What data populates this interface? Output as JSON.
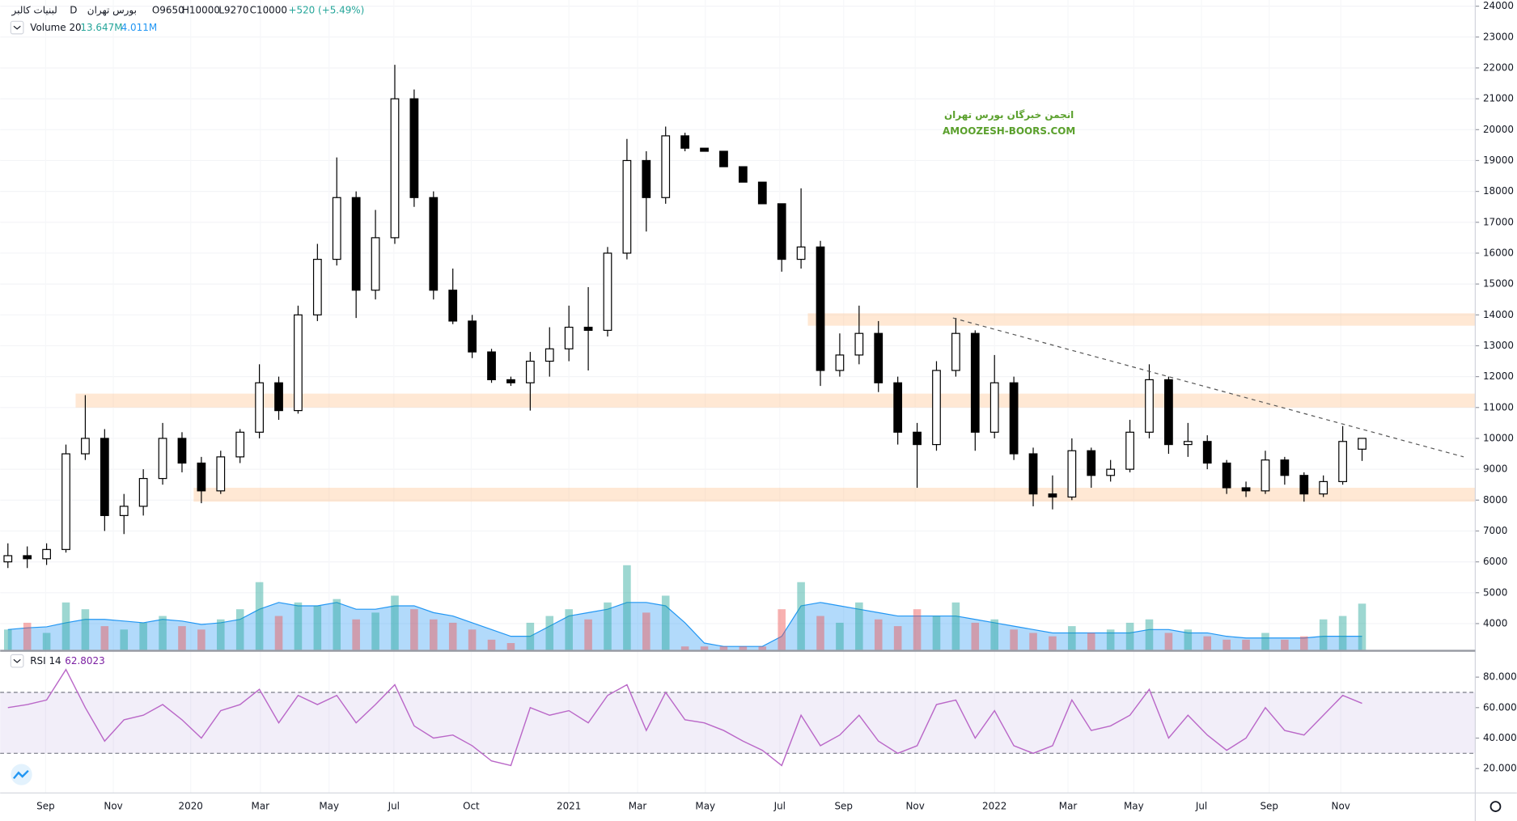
{
  "chart_data": {
    "type": "candlestick",
    "header": {
      "symbol": "لبنیات کالبر",
      "interval": "D",
      "exchange": "بورس تهران",
      "ohlc": [
        "O9650",
        "H10000",
        "L9270",
        "C10000"
      ],
      "change": "+520 (+5.49%)"
    },
    "volume_legend": {
      "name": "Volume 20",
      "value_label": "13.647M",
      "ma_label": "4.011M"
    },
    "rsi_legend": {
      "name": "RSI 14",
      "value_label": "62.8023"
    },
    "watermark": [
      "انجمن خبرگان بورس تهران",
      "AMOOZESH-BOORS.COM"
    ],
    "up_color": "#ffffff",
    "down_color": "#000000",
    "wick_color": "#000000",
    "xlim": [
      -0.4,
      75.85
    ],
    "xticks": [
      {
        "value": 1.95,
        "label": "Sep"
      },
      {
        "value": 5.45,
        "label": "Nov"
      },
      {
        "value": 9.45,
        "label": "2020"
      },
      {
        "value": 13.05,
        "label": "Mar"
      },
      {
        "value": 16.6,
        "label": "May"
      },
      {
        "value": 19.95,
        "label": "Jul"
      },
      {
        "value": 23.95,
        "label": "Oct"
      },
      {
        "value": 29,
        "label": "2021"
      },
      {
        "value": 32.55,
        "label": "Mar"
      },
      {
        "value": 36.05,
        "label": "May"
      },
      {
        "value": 39.9,
        "label": "Jul"
      },
      {
        "value": 43.2,
        "label": "Sep"
      },
      {
        "value": 46.9,
        "label": "Nov"
      },
      {
        "value": 51,
        "label": "2022"
      },
      {
        "value": 54.8,
        "label": "Mar"
      },
      {
        "value": 58.2,
        "label": "May"
      },
      {
        "value": 61.7,
        "label": "Jul"
      },
      {
        "value": 65.2,
        "label": "Sep"
      },
      {
        "value": 68.9,
        "label": "Nov"
      }
    ],
    "ylim": [
      3150,
      24200
    ],
    "yticks": [
      4000,
      5000,
      6000,
      7000,
      8000,
      9000,
      10000,
      11000,
      12000,
      13000,
      14000,
      15000,
      16000,
      17000,
      18000,
      19000,
      20000,
      21000,
      22000,
      23000,
      24000
    ],
    "grid": true,
    "candles": [
      [
        6000,
        6600,
        5800,
        6200
      ],
      [
        6200,
        6500,
        5800,
        6100
      ],
      [
        6100,
        6600,
        5900,
        6400
      ],
      [
        6400,
        9800,
        6300,
        9500
      ],
      [
        9500,
        11400,
        9300,
        10000
      ],
      [
        10000,
        10300,
        7000,
        7500
      ],
      [
        7500,
        8200,
        6900,
        7800
      ],
      [
        7800,
        9000,
        7500,
        8700
      ],
      [
        8700,
        10500,
        8500,
        10000
      ],
      [
        10000,
        10200,
        8900,
        9200
      ],
      [
        9200,
        9400,
        7900,
        8300
      ],
      [
        8300,
        9600,
        8200,
        9400
      ],
      [
        9400,
        10300,
        9200,
        10200
      ],
      [
        10200,
        12400,
        10000,
        11800
      ],
      [
        11800,
        12000,
        10600,
        10900
      ],
      [
        10900,
        14300,
        10800,
        14000
      ],
      [
        14000,
        16300,
        13800,
        15800
      ],
      [
        15800,
        19100,
        15600,
        17800
      ],
      [
        17800,
        18000,
        13900,
        14800
      ],
      [
        14800,
        17400,
        14500,
        16500
      ],
      [
        16500,
        22100,
        16300,
        21000
      ],
      [
        21000,
        21300,
        17500,
        17800
      ],
      [
        17800,
        18000,
        14500,
        14800
      ],
      [
        14800,
        15500,
        13700,
        13800
      ],
      [
        13800,
        14000,
        12600,
        12800
      ],
      [
        12800,
        12900,
        11800,
        11900
      ],
      [
        11900,
        12000,
        11700,
        11800
      ],
      [
        11800,
        12800,
        10900,
        12500
      ],
      [
        12500,
        13600,
        12000,
        12900
      ],
      [
        12900,
        14300,
        12500,
        13600
      ],
      [
        13600,
        14900,
        12200,
        13500
      ],
      [
        13500,
        16200,
        13300,
        16000
      ],
      [
        16000,
        19700,
        15800,
        19000
      ],
      [
        19000,
        19300,
        16700,
        17800
      ],
      [
        17800,
        20100,
        17600,
        19800
      ],
      [
        19800,
        19900,
        19300,
        19400
      ],
      [
        19400,
        19400,
        19300,
        19300
      ],
      [
        19300,
        19300,
        18800,
        18800
      ],
      [
        18800,
        18800,
        18300,
        18300
      ],
      [
        18300,
        18300,
        17600,
        17600
      ],
      [
        17600,
        17600,
        15400,
        15800
      ],
      [
        15800,
        18100,
        15500,
        16200
      ],
      [
        16200,
        16400,
        11700,
        12200
      ],
      [
        12200,
        13400,
        12000,
        12700
      ],
      [
        12700,
        14300,
        12400,
        13400
      ],
      [
        13400,
        13800,
        11500,
        11800
      ],
      [
        11800,
        12000,
        9800,
        10200
      ],
      [
        10200,
        10500,
        8400,
        9800
      ],
      [
        9800,
        12500,
        9600,
        12200
      ],
      [
        12200,
        13900,
        12000,
        13400
      ],
      [
        13400,
        13500,
        9600,
        10200
      ],
      [
        10200,
        12700,
        10000,
        11800
      ],
      [
        11800,
        12000,
        9300,
        9500
      ],
      [
        9500,
        9700,
        7800,
        8200
      ],
      [
        8200,
        8800,
        7700,
        8100
      ],
      [
        8100,
        10000,
        8000,
        9600
      ],
      [
        9600,
        9700,
        8400,
        8800
      ],
      [
        8800,
        9300,
        8600,
        9000
      ],
      [
        9000,
        10600,
        8900,
        10200
      ],
      [
        10200,
        12400,
        10000,
        11900
      ],
      [
        11900,
        12000,
        9500,
        9800
      ],
      [
        9800,
        10500,
        9400,
        9900
      ],
      [
        9900,
        10100,
        9000,
        9200
      ],
      [
        9200,
        9300,
        8200,
        8400
      ],
      [
        8400,
        8600,
        8100,
        8300
      ],
      [
        8300,
        9600,
        8200,
        9300
      ],
      [
        9300,
        9400,
        8500,
        8800
      ],
      [
        8800,
        8900,
        7950,
        8200
      ],
      [
        8200,
        8800,
        8100,
        8600
      ],
      [
        8600,
        10400,
        8500,
        9900
      ],
      [
        9650,
        10000,
        9270,
        10000
      ]
    ],
    "volume_lim": [
      0,
      40
    ],
    "volume_up_color": "rgba(38,166,154,0.45)",
    "volume_down_color": "rgba(239,83,80,0.45)",
    "volume_ma_color": "#2196f3",
    "volume_ma_fill": "rgba(33,150,243,0.35)",
    "volumes": [
      6,
      8,
      5,
      14,
      12,
      7,
      6,
      8,
      10,
      7,
      6,
      9,
      12,
      20,
      10,
      14,
      13,
      15,
      9,
      11,
      16,
      12,
      9,
      8,
      6,
      3,
      2,
      8,
      10,
      12,
      9,
      14,
      25,
      11,
      16,
      1,
      1,
      1,
      1,
      1,
      12,
      20,
      10,
      8,
      14,
      9,
      7,
      12,
      10,
      14,
      8,
      9,
      6,
      5,
      4,
      7,
      5,
      6,
      8,
      9,
      5,
      6,
      4,
      3,
      3,
      5,
      3,
      4,
      9,
      10,
      13.647
    ],
    "volume_ma": [
      6,
      6.5,
      6.8,
      8,
      9,
      9,
      8.5,
      8,
      9,
      8.5,
      7.5,
      8,
      9,
      12,
      14,
      13,
      13,
      14,
      12,
      12,
      13,
      13,
      11,
      10,
      8,
      6,
      4,
      4,
      7,
      10,
      11,
      12,
      14,
      14,
      13,
      8,
      2,
      1,
      1,
      1,
      4,
      13,
      14,
      13,
      12,
      11,
      10,
      10,
      10,
      10,
      9,
      8,
      7,
      6,
      5,
      5,
      5,
      5,
      5,
      6,
      6,
      5,
      5,
      4,
      3.5,
      3.5,
      3.5,
      3.5,
      4,
      4,
      4.011
    ],
    "zones": [
      {
        "from": 11000,
        "to": 11450,
        "start": 3.5
      },
      {
        "from": 13650,
        "to": 14050,
        "start": 41.35
      },
      {
        "from": 7950,
        "to": 8400,
        "start": 9.6
      }
    ],
    "zone_color": "rgba(255,183,120,0.32)",
    "trendline": [
      [
        48.85,
        13900
      ],
      [
        75.25,
        9400
      ]
    ],
    "rsi_color": "#ba68c8",
    "rsi_band_fill": "rgba(126,87,194,0.1)",
    "rsi_bands": [
      30,
      70
    ],
    "rsi_lim": [
      4,
      96
    ],
    "rsi_ticks": [
      {
        "value": 80,
        "label": "80.0000"
      },
      {
        "value": 60,
        "label": "60.0000"
      },
      {
        "value": 40,
        "label": "40.0000"
      },
      {
        "value": 20,
        "label": "20.0000"
      }
    ],
    "rsi": [
      60,
      62,
      65,
      85,
      60,
      38,
      52,
      55,
      62,
      52,
      40,
      58,
      62,
      72,
      50,
      68,
      62,
      68,
      50,
      62,
      75,
      48,
      40,
      42,
      35,
      25,
      22,
      60,
      55,
      58,
      50,
      68,
      75,
      45,
      70,
      52,
      50,
      45,
      38,
      32,
      22,
      55,
      35,
      42,
      55,
      38,
      30,
      35,
      62,
      65,
      40,
      58,
      35,
      30,
      35,
      65,
      45,
      48,
      55,
      72,
      40,
      55,
      42,
      32,
      40,
      60,
      45,
      42,
      55,
      68,
      62.8023
    ]
  }
}
